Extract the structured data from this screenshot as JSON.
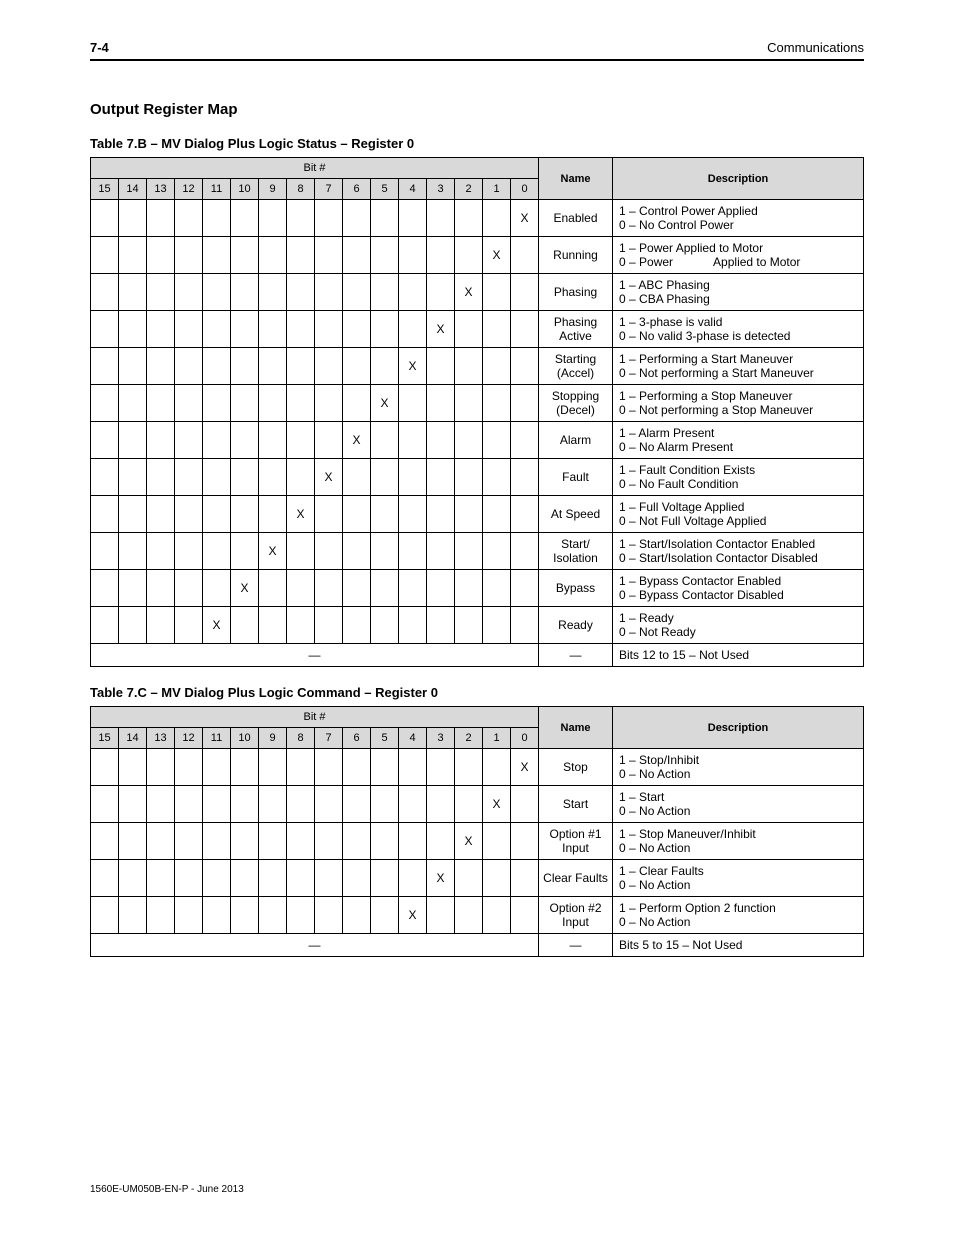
{
  "header": {
    "page_number": "7-4",
    "section": "Communications"
  },
  "section_title": "Output Register Map",
  "footer": "1560E-UM050B-EN-P - June 2013",
  "table1": {
    "caption": "Table 7.B – MV Dialog Plus Logic Status – Register 0",
    "bit_label": "Bit #",
    "name_label": "Name",
    "desc_label": "Description",
    "bits": [
      "15",
      "14",
      "13",
      "12",
      "11",
      "10",
      "9",
      "8",
      "7",
      "6",
      "5",
      "4",
      "3",
      "2",
      "1",
      "0"
    ],
    "rows": [
      {
        "x": 0,
        "name": "Enabled",
        "desc": "1 – Control Power Applied\n0 – No Control Power"
      },
      {
        "x": 1,
        "name": "Running",
        "desc": "1 – Power Applied to Motor\n0 – Power",
        "desc_sub": "Applied to Motor"
      },
      {
        "x": 2,
        "name": "Phasing",
        "desc": "1 – ABC Phasing\n0 – CBA Phasing"
      },
      {
        "x": 3,
        "name": "Phasing Active",
        "desc": "1 – 3-phase is valid\n0 – No valid 3-phase is detected"
      },
      {
        "x": 4,
        "name": "Starting (Accel)",
        "desc": "1 – Performing a Start Maneuver\n0 – Not performing a Start Maneuver"
      },
      {
        "x": 5,
        "name": "Stopping (Decel)",
        "desc": "1 – Performing a Stop Maneuver\n0 – Not performing a Stop Maneuver"
      },
      {
        "x": 6,
        "name": "Alarm",
        "desc": "1 – Alarm Present\n0 – No Alarm Present"
      },
      {
        "x": 7,
        "name": "Fault",
        "desc": "1 – Fault Condition Exists\n0 – No Fault Condition"
      },
      {
        "x": 8,
        "name": "At Speed",
        "desc": "1 – Full Voltage Applied\n0 – Not Full Voltage Applied"
      },
      {
        "x": 9,
        "name": "Start/ Isolation",
        "desc": "1 – Start/Isolation Contactor Enabled\n0 – Start/Isolation Contactor Disabled"
      },
      {
        "x": 10,
        "name": "Bypass",
        "desc": "1 – Bypass Contactor Enabled\n0 – Bypass Contactor Disabled"
      },
      {
        "x": 11,
        "name": "Ready",
        "desc": "1 – Ready\n0 – Not Ready"
      }
    ],
    "unused": {
      "dash": "—",
      "name_dash": "—",
      "desc": "Bits 12 to 15 – Not Used"
    }
  },
  "table2": {
    "caption": "Table 7.C – MV Dialog Plus Logic Command – Register 0",
    "bit_label": "Bit #",
    "name_label": "Name",
    "desc_label": "Description",
    "bits": [
      "15",
      "14",
      "13",
      "12",
      "11",
      "10",
      "9",
      "8",
      "7",
      "6",
      "5",
      "4",
      "3",
      "2",
      "1",
      "0"
    ],
    "rows": [
      {
        "x": 0,
        "name": "Stop",
        "desc": "1 – Stop/Inhibit\n0 – No Action"
      },
      {
        "x": 1,
        "name": "Start",
        "desc": "1 – Start\n0 – No Action"
      },
      {
        "x": 2,
        "name": "Option #1 Input",
        "desc": "1 – Stop Maneuver/Inhibit\n0 – No Action"
      },
      {
        "x": 3,
        "name": "Clear Faults",
        "desc": "1 – Clear Faults\n0 – No Action"
      },
      {
        "x": 4,
        "name": "Option #2 Input",
        "desc": "1 – Perform Option 2 function\n0 – No Action"
      }
    ],
    "unused": {
      "dash": "—",
      "name_dash": "—",
      "desc": "Bits 5 to 15 – Not Used"
    }
  }
}
